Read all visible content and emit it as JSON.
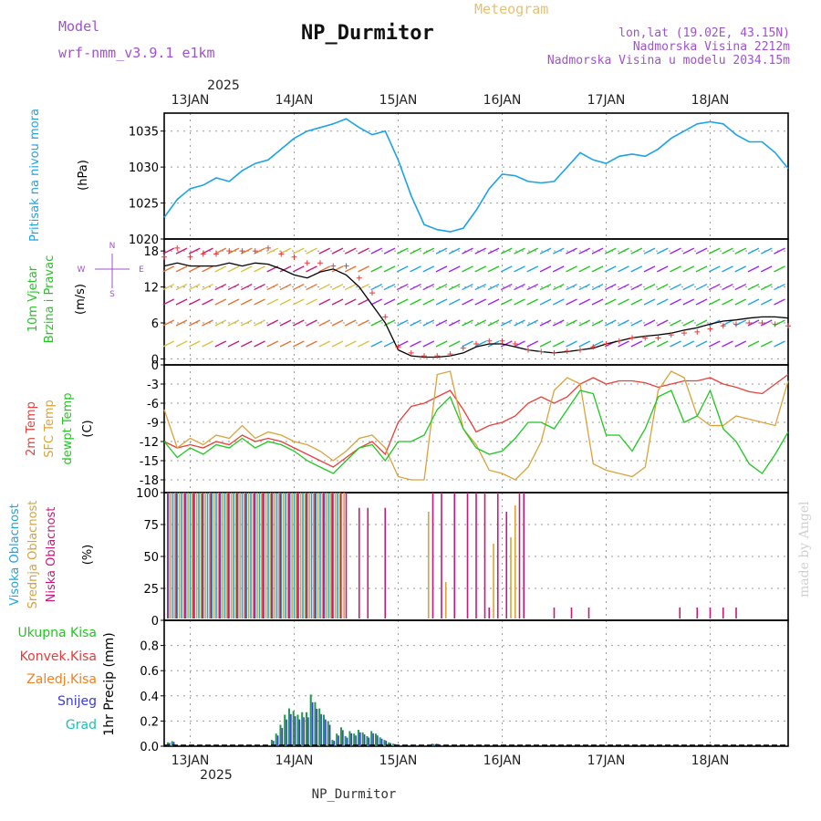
{
  "header": {
    "model_label": "Model",
    "model_name": "wrf-nmm_v3.9.1 e1km",
    "title": "NP_Durmitor",
    "meteogram_label": "Meteogram",
    "coords": "lon,lat (19.02E, 43.15N)",
    "elevation": "Nadmorska Visina 2212m",
    "model_elevation": "Nadmorska Visina u modelu 2034.15m",
    "footer": "NP_Durmitor",
    "credit": "made by Angel"
  },
  "colors": {
    "pressure": "#1ba3e8",
    "temp2m": "#e8403a",
    "sfc": "#d9a33a",
    "dew": "#1ec81e",
    "high": "#1ba3e8",
    "mid": "#d9a33a",
    "low": "#c8187a",
    "precip_total": "#1e9a4a",
    "precip_snow": "#3a3ae0",
    "precip_conv": "#e83a3a",
    "precip_frz": "#f08020",
    "wind_speed": "#000000",
    "gust": "#e83a3a",
    "title_purple": "#a050d0"
  },
  "chart_data": [
    {
      "type": "line",
      "panel": "pressure",
      "ylabel_lines": [
        "Pritisak na nivou mora",
        "(hPa)"
      ],
      "ylim": [
        1020,
        1037.5
      ],
      "yticks": [
        "1035",
        "1030",
        "1025",
        "1020"
      ],
      "ytick_values": [
        1035,
        1030,
        1025,
        1020
      ],
      "x_days": [
        "13JAN",
        "14JAN",
        "15JAN",
        "16JAN",
        "17JAN",
        "18JAN"
      ],
      "x_year": "2025",
      "x_range_hours": [
        -6,
        138
      ],
      "series": [
        {
          "name": "Pritisak na nivou mora",
          "x": [
            -6,
            -3,
            0,
            3,
            6,
            9,
            12,
            15,
            18,
            21,
            24,
            27,
            30,
            33,
            36,
            39,
            42,
            45,
            48,
            51,
            54,
            57,
            60,
            63,
            66,
            69,
            72,
            75,
            78,
            81,
            84,
            87,
            90,
            93,
            96,
            99,
            102,
            105,
            108,
            111,
            114,
            117,
            120,
            123,
            126,
            129,
            132,
            135,
            138
          ],
          "y": [
            1023,
            1025.5,
            1027,
            1027.5,
            1028.5,
            1028,
            1029.5,
            1030.5,
            1031,
            1032.5,
            1034,
            1035,
            1035.5,
            1036,
            1036.7,
            1035.5,
            1034.5,
            1035,
            1031,
            1026,
            1022,
            1021.3,
            1021,
            1021.5,
            1024,
            1027,
            1029,
            1028.8,
            1028,
            1027.8,
            1028,
            1030,
            1032,
            1031,
            1030.5,
            1031.5,
            1031.8,
            1031.5,
            1032.5,
            1034,
            1035,
            1036,
            1036.3,
            1036,
            1034.5,
            1033.5,
            1033.5,
            1032,
            1029.8
          ]
        }
      ]
    },
    {
      "type": "line",
      "panel": "wind",
      "ylabel_lines": [
        "10m Vjetar",
        "Brzina i Pravac",
        "(m/s)"
      ],
      "direction_legend": [
        "N",
        "E",
        "S",
        "W"
      ],
      "ylim": [
        -1,
        20
      ],
      "yticks": [
        "18",
        "12",
        "6",
        "0"
      ],
      "ytick_values": [
        18,
        12,
        6,
        0
      ],
      "series": [
        {
          "name": "10m Vjetar",
          "x": [
            -6,
            -3,
            0,
            3,
            6,
            9,
            12,
            15,
            18,
            21,
            24,
            27,
            30,
            33,
            36,
            39,
            42,
            45,
            48,
            51,
            54,
            57,
            60,
            63,
            66,
            69,
            72,
            75,
            78,
            81,
            84,
            87,
            90,
            93,
            96,
            99,
            102,
            105,
            108,
            111,
            114,
            117,
            120,
            123,
            126,
            129,
            132,
            135,
            138
          ],
          "y": [
            15.5,
            16,
            15.5,
            15.5,
            15.5,
            16,
            15.5,
            16,
            15.8,
            15,
            14,
            13.5,
            14.5,
            15,
            14,
            12,
            9,
            6,
            1.5,
            0.5,
            0.3,
            0.3,
            0.5,
            1,
            2,
            2.5,
            2.5,
            2,
            1.5,
            1.2,
            1,
            1.2,
            1.5,
            1.8,
            2.5,
            3,
            3.5,
            3.8,
            4,
            4.3,
            4.8,
            5.2,
            5.8,
            6.3,
            6.5,
            6.8,
            7,
            7,
            6.8
          ]
        },
        {
          "name": "gust",
          "x": [
            -6,
            -3,
            0,
            3,
            6,
            9,
            12,
            15,
            18,
            21,
            24,
            27,
            30,
            33,
            36,
            39,
            42,
            45,
            48,
            51,
            54,
            57,
            60,
            63,
            66,
            69,
            72,
            75,
            78,
            81,
            84,
            87,
            90,
            93,
            96,
            99,
            102,
            105,
            108,
            111,
            114,
            117,
            120,
            123,
            126,
            129,
            132,
            135,
            138
          ],
          "y": [
            17,
            18.5,
            17,
            17.5,
            17.5,
            18,
            18,
            18,
            18.5,
            17.5,
            17,
            16,
            16,
            15.5,
            15.5,
            13.5,
            11,
            7,
            2,
            1,
            0.5,
            0.5,
            0.8,
            1.8,
            2.5,
            3,
            3,
            2.5,
            1.5,
            1.2,
            1,
            1.3,
            1.5,
            2,
            2.5,
            3,
            3.5,
            3.5,
            3.5,
            4,
            4.3,
            4.5,
            5,
            5.5,
            5.8,
            6,
            6,
            5.8,
            5.5
          ]
        }
      ]
    },
    {
      "type": "line",
      "panel": "temperature",
      "ylabel_lines": [
        "2m Temp",
        "SFC Temp",
        "dewpt Temp",
        "(C)"
      ],
      "ylim": [
        -20,
        0
      ],
      "yticks": [
        "0",
        "-3",
        "-6",
        "-9",
        "-12",
        "-15",
        "-18"
      ],
      "ytick_values": [
        0,
        -3,
        -6,
        -9,
        -12,
        -15,
        -18
      ],
      "series": [
        {
          "name": "2m Temp",
          "x": [
            -6,
            -3,
            0,
            3,
            6,
            9,
            12,
            15,
            18,
            21,
            24,
            27,
            30,
            33,
            36,
            39,
            42,
            45,
            48,
            51,
            54,
            57,
            60,
            63,
            66,
            69,
            72,
            75,
            78,
            81,
            84,
            87,
            90,
            93,
            96,
            99,
            102,
            105,
            108,
            111,
            114,
            117,
            120,
            123,
            126,
            129,
            132,
            135,
            138
          ],
          "y": [
            -12,
            -13,
            -12.5,
            -13,
            -12,
            -12.5,
            -11,
            -12,
            -11.5,
            -12,
            -13,
            -14,
            -15,
            -16,
            -14.5,
            -13,
            -12,
            -14,
            -9,
            -6.5,
            -6,
            -5,
            -4,
            -7,
            -10.5,
            -9.5,
            -9,
            -8,
            -6,
            -5,
            -6,
            -5,
            -3,
            -2,
            -3,
            -2.5,
            -2.5,
            -2.8,
            -3.5,
            -3,
            -2.5,
            -2.5,
            -2,
            -3,
            -3.5,
            -4.2,
            -4.5,
            -3,
            -1.5
          ]
        },
        {
          "name": "SFC Temp",
          "x": [
            -6,
            -3,
            0,
            3,
            6,
            9,
            12,
            15,
            18,
            21,
            24,
            27,
            30,
            33,
            36,
            39,
            42,
            45,
            48,
            51,
            54,
            57,
            60,
            63,
            66,
            69,
            72,
            75,
            78,
            81,
            84,
            87,
            90,
            93,
            96,
            99,
            102,
            105,
            108,
            111,
            114,
            117,
            120,
            123,
            126,
            129,
            132,
            135,
            138
          ],
          "y": [
            -7,
            -13,
            -11.5,
            -12.5,
            -11,
            -11.5,
            -9.5,
            -11.5,
            -10.5,
            -11,
            -12,
            -12.5,
            -13.5,
            -15,
            -13.5,
            -11.5,
            -11,
            -13,
            -17.5,
            -18,
            -18,
            -1.5,
            -1,
            -10,
            -12.5,
            -16.5,
            -17,
            -18,
            -16,
            -12,
            -4,
            -2,
            -3,
            -15.5,
            -16.5,
            -17,
            -17.5,
            -16,
            -4,
            -1,
            -2,
            -8,
            -9.5,
            -9.5,
            -8,
            -8.5,
            -9,
            -9.5,
            -2.5
          ]
        },
        {
          "name": "dewpt Temp",
          "x": [
            -6,
            -3,
            0,
            3,
            6,
            9,
            12,
            15,
            18,
            21,
            24,
            27,
            30,
            33,
            36,
            39,
            42,
            45,
            48,
            51,
            54,
            57,
            60,
            63,
            66,
            69,
            72,
            75,
            78,
            81,
            84,
            87,
            90,
            93,
            96,
            99,
            102,
            105,
            108,
            111,
            114,
            117,
            120,
            123,
            126,
            129,
            132,
            135,
            138
          ],
          "y": [
            -12,
            -14.5,
            -13,
            -14,
            -12.5,
            -13,
            -11.5,
            -13,
            -12,
            -12.5,
            -13.5,
            -15,
            -16,
            -17,
            -15,
            -13,
            -12.5,
            -15,
            -12,
            -12,
            -11,
            -7,
            -5,
            -10,
            -13,
            -14,
            -13.5,
            -11.5,
            -9,
            -9,
            -10,
            -7,
            -4,
            -4.5,
            -11,
            -11,
            -13.5,
            -10,
            -5,
            -4,
            -9,
            -8,
            -4,
            -10,
            -12,
            -15.5,
            -17,
            -14,
            -10.5
          ]
        }
      ]
    },
    {
      "type": "bar",
      "panel": "clouds",
      "ylabel_lines": [
        "Visoka Oblacnost",
        "Srednja Oblacnost",
        "Niska Oblacnost",
        "(%)"
      ],
      "ylim": [
        0,
        100
      ],
      "yticks": [
        "100",
        "75",
        "50",
        "25",
        "0"
      ],
      "ytick_values": [
        100,
        75,
        50,
        25,
        0
      ],
      "series": [
        {
          "name": "Visoka Oblacnost",
          "x": [
            -5,
            -4,
            -3,
            -2,
            -1,
            0,
            1,
            2,
            3,
            4,
            5,
            6,
            7,
            8,
            9,
            10,
            11,
            12,
            13,
            14,
            15,
            16,
            17,
            18,
            19,
            20,
            21,
            22,
            23,
            24,
            25,
            26,
            27,
            28,
            29,
            30,
            31,
            32,
            33,
            34
          ],
          "values": [
            100,
            100,
            100,
            100,
            100,
            100,
            100,
            100,
            100,
            100,
            100,
            100,
            100,
            100,
            100,
            100,
            100,
            100,
            100,
            100,
            100,
            100,
            100,
            100,
            100,
            100,
            100,
            100,
            100,
            100,
            100,
            100,
            100,
            100,
            100,
            100,
            100,
            100,
            100,
            100
          ]
        },
        {
          "name": "Srednja Oblacnost",
          "x": [
            -4.5,
            -3.5,
            -2.5,
            -1.5,
            -0.5,
            0.5,
            1.5,
            2.5,
            3.5,
            4.5,
            5.5,
            6.5,
            7.5,
            8.5,
            9.5,
            10.5,
            11.5,
            12.5,
            13.5,
            14.5,
            15.5,
            16.5,
            17.5,
            18.5,
            19.5,
            20.5,
            21.5,
            22.5,
            23.5,
            24.5,
            25.5,
            26.5,
            27.5,
            28.5,
            29.5,
            30.5,
            31.5,
            32.5,
            33.5,
            34.5,
            35.5,
            55,
            59,
            70,
            74,
            75
          ],
          "values": [
            100,
            100,
            100,
            100,
            100,
            100,
            100,
            100,
            100,
            100,
            100,
            100,
            100,
            100,
            100,
            100,
            100,
            100,
            100,
            100,
            100,
            100,
            100,
            100,
            100,
            100,
            100,
            100,
            100,
            100,
            100,
            100,
            100,
            100,
            100,
            100,
            100,
            100,
            100,
            100,
            100,
            85,
            30,
            60,
            65,
            90
          ]
        },
        {
          "name": "Niska Oblacnost",
          "x": [
            -5.2,
            -3.2,
            -1.2,
            0.8,
            2.8,
            4.8,
            6.8,
            8.8,
            10.8,
            12.8,
            14.8,
            16.8,
            18.8,
            20.8,
            22.8,
            24.8,
            26.8,
            28.8,
            30.8,
            32.8,
            34.8,
            36,
            39,
            41,
            45,
            56,
            58,
            61,
            64,
            66,
            68,
            69,
            71,
            73,
            76,
            77,
            84,
            88,
            92,
            113,
            117,
            120,
            123,
            126
          ],
          "values": [
            100,
            100,
            100,
            100,
            100,
            100,
            100,
            100,
            100,
            100,
            100,
            100,
            100,
            100,
            100,
            100,
            100,
            100,
            100,
            100,
            100,
            100,
            88,
            88,
            88,
            100,
            100,
            100,
            100,
            100,
            100,
            10,
            100,
            85,
            100,
            100,
            10,
            10,
            10,
            10,
            10,
            10,
            10,
            10
          ]
        }
      ]
    },
    {
      "type": "bar",
      "panel": "precip",
      "ylabel_lines": [
        "1hr Precip (mm)"
      ],
      "legend": [
        "Ukupna Kisa",
        "Konvek.Kisa",
        "Zaledj.Kisa",
        "Snijeg",
        "Grad"
      ],
      "ylim": [
        0,
        1.0
      ],
      "yticks": [
        "0.8",
        "0.6",
        "0.4",
        "0.2",
        "0.0"
      ],
      "ytick_values": [
        0.8,
        0.6,
        0.4,
        0.2,
        0.0
      ],
      "series": [
        {
          "name": "Ukupna Kisa",
          "x": [
            -5,
            -4,
            19,
            20,
            21,
            22,
            23,
            24,
            25,
            26,
            27,
            28,
            29,
            30,
            31,
            32,
            33,
            34,
            35,
            36,
            37,
            38,
            39,
            40,
            41,
            42,
            43,
            44,
            45,
            46,
            47,
            48,
            52,
            56,
            57
          ],
          "values": [
            0.03,
            0.04,
            0.05,
            0.1,
            0.17,
            0.25,
            0.3,
            0.28,
            0.25,
            0.27,
            0.27,
            0.41,
            0.35,
            0.3,
            0.25,
            0.2,
            0.05,
            0.1,
            0.15,
            0.08,
            0.12,
            0.1,
            0.13,
            0.11,
            0.08,
            0.12,
            0.1,
            0.07,
            0.05,
            0.03,
            0.02,
            0.01,
            0.01,
            0.02,
            0.02
          ]
        }
      ]
    }
  ]
}
